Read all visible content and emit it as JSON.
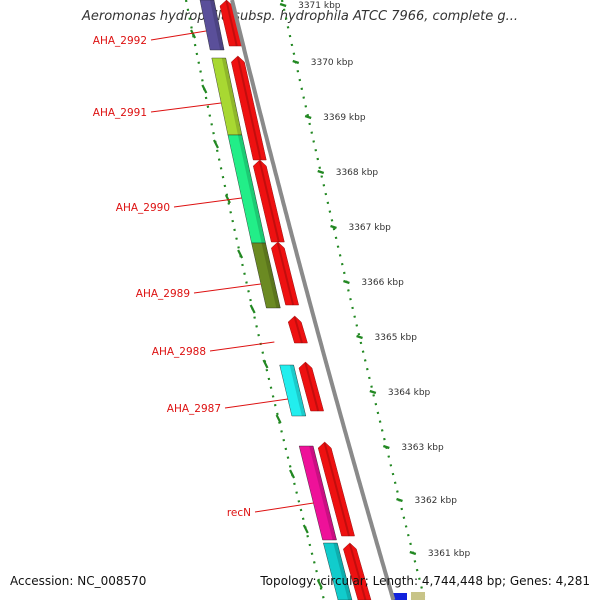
{
  "title": "Aeromonas hydrophila subsp. hydrophila ATCC 7966, complete g...",
  "footer": {
    "accession": "Accession: NC_008570",
    "topology": "Topology: circular; Length: 4,744,448 bp; Genes: 4,281"
  },
  "colors": {
    "forward_strand": "#ee1111",
    "backbone": "#8a8a8a",
    "tick": "#228822",
    "gene_label": "#dd1111",
    "kbp_label": "#333333"
  },
  "kbp_ticks": [
    "3371 kbp",
    "3370 kbp",
    "3369 kbp",
    "3368 kbp",
    "3367 kbp",
    "3366 kbp",
    "3365 kbp",
    "3364 kbp",
    "3363 kbp",
    "3362 kbp",
    "3361 kbp"
  ],
  "genes": [
    {
      "name": "AHA_2992",
      "color": "#5a4f9a"
    },
    {
      "name": "AHA_2991",
      "color": "#a8d832"
    },
    {
      "name": "AHA_2990",
      "color": "#22ee88"
    },
    {
      "name": "AHA_2989",
      "color": "#6b8a22"
    },
    {
      "name": "AHA_2988",
      "color": ""
    },
    {
      "name": "AHA_2987",
      "color": "#22eeee"
    },
    {
      "name": "recN",
      "color": "#ee1199"
    },
    {
      "name": "",
      "color": "#11cccc"
    }
  ]
}
